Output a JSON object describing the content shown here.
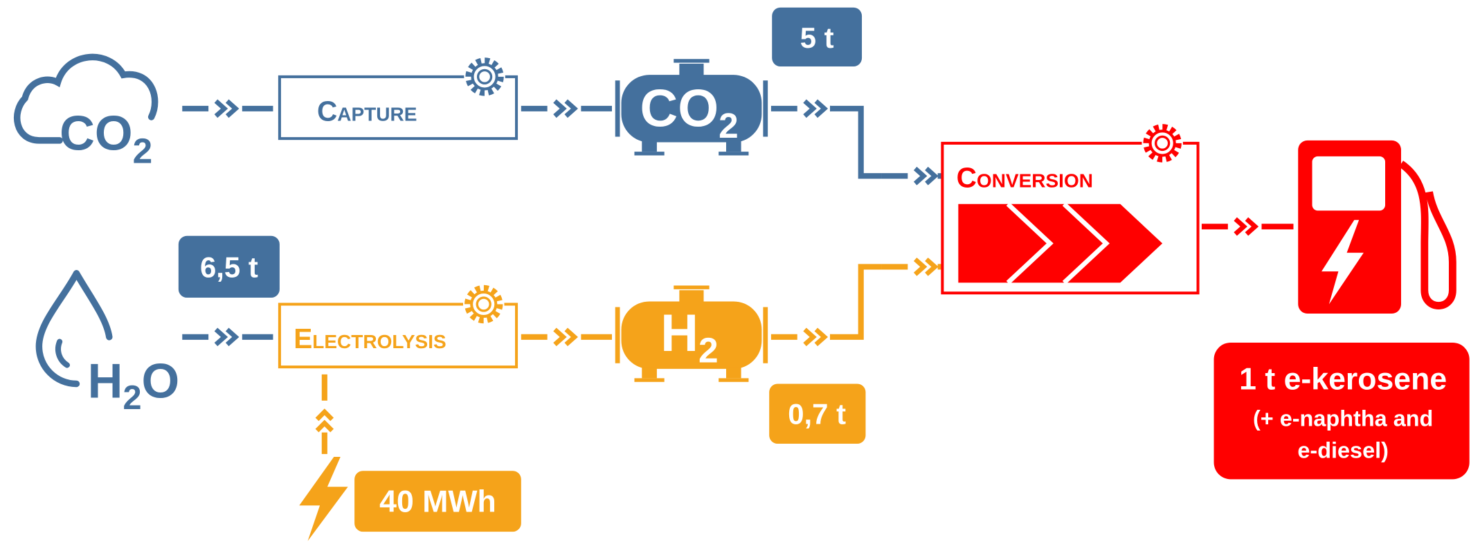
{
  "co2_source": [
    "CO",
    "2"
  ],
  "capture": "Capture",
  "co2_tank": [
    "CO",
    "2"
  ],
  "co2_amount": "5 t",
  "water_amount": "6,5 t",
  "h2o_source": [
    "H",
    "2",
    "O"
  ],
  "electrolysis": "Electrolysis",
  "h2_tank": [
    "H",
    "2"
  ],
  "h2_amount": "0,7 t",
  "energy": "40 MWh",
  "conversion": "Conversion",
  "output": {
    "title": "1 t e-kerosene",
    "note_lines": [
      "(+ e-naphtha and",
      "e-diesel)"
    ]
  }
}
